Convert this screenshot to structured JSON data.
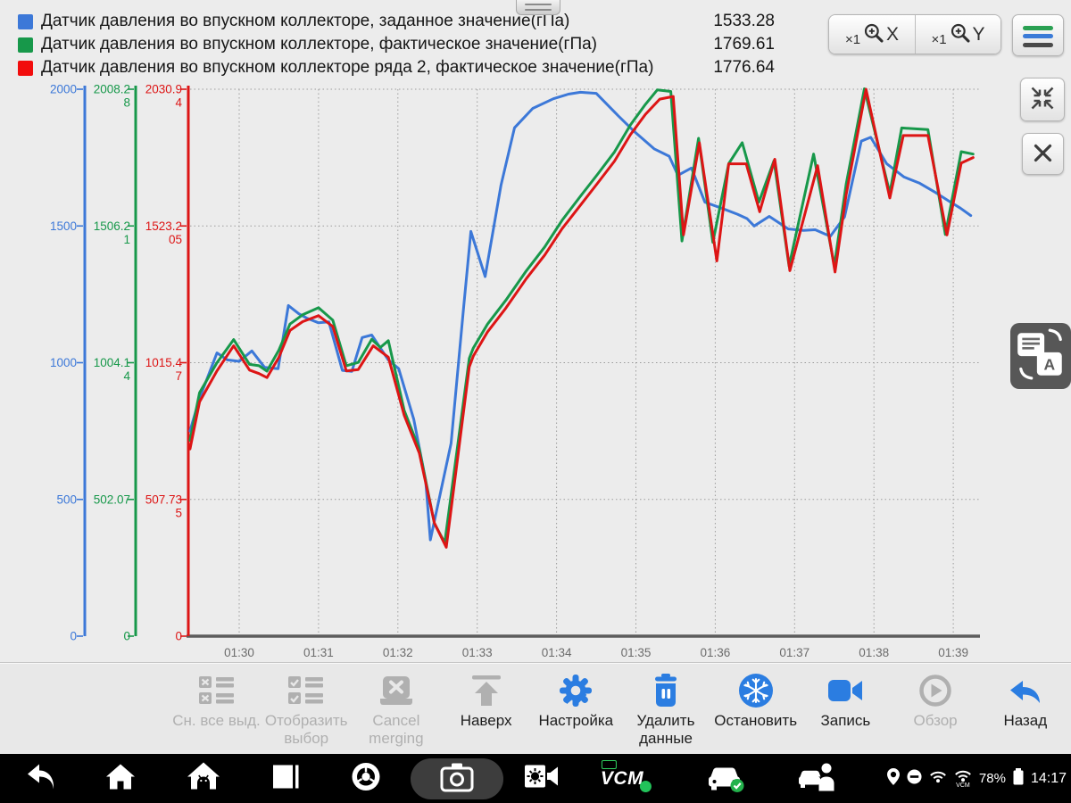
{
  "legend": {
    "rows": [
      {
        "label": "Датчик давления во впускном коллекторе, заданное значение(гПа)",
        "value": "1533.28",
        "color": "#3c78d8"
      },
      {
        "label": "Датчик давления во впускном коллекторе, фактическое значение(гПа)",
        "value": "1769.61",
        "color": "#17984a"
      },
      {
        "label": "Датчик давления во впускном коллекторе ряда 2, фактическое значение(гПа)",
        "value": "1776.64",
        "color": "#f20d0d"
      }
    ]
  },
  "controls": {
    "zoom_x": {
      "multiplier": "×1",
      "axis": "X"
    },
    "zoom_y": {
      "multiplier": "×1",
      "axis": "Y"
    }
  },
  "chart_data": {
    "type": "line",
    "x_ticks": [
      "01:30",
      "01:31",
      "01:32",
      "01:33",
      "01:34",
      "01:35",
      "01:36",
      "01:37",
      "01:38",
      "01:39"
    ],
    "grid": true,
    "y_axes": [
      {
        "name": "setpoint",
        "color": "#3c78d8",
        "max": 2000,
        "tick_labels": [
          [
            "2000"
          ],
          [
            "1500"
          ],
          [
            "1000"
          ],
          [
            "500"
          ],
          [
            "0"
          ]
        ]
      },
      {
        "name": "actual",
        "color": "#17984a",
        "max": 2008.28,
        "tick_labels": [
          [
            "2008.2",
            "8"
          ],
          [
            "1506.2",
            "1"
          ],
          [
            "1004.1",
            "4"
          ],
          [
            "502.07"
          ],
          [
            "0"
          ]
        ]
      },
      {
        "name": "actual_bank2",
        "color": "#dd1515",
        "max": 2030.94,
        "tick_labels": [
          [
            "2030.9",
            "4"
          ],
          [
            "1523.2",
            "05"
          ],
          [
            "1015.4",
            "7"
          ],
          [
            "507.73",
            "5"
          ],
          [
            "0"
          ]
        ]
      }
    ],
    "series": [
      {
        "name": "Датчик давления во впускном коллекторе, заданное значение(гПа)",
        "color": "#3c78d8",
        "axis_max": 2000,
        "points": [
          [
            0.38,
            750
          ],
          [
            0.5,
            870
          ],
          [
            0.62,
            960
          ],
          [
            0.72,
            1036
          ],
          [
            0.85,
            1010
          ],
          [
            1.0,
            1005
          ],
          [
            1.16,
            1043
          ],
          [
            1.32,
            983
          ],
          [
            1.49,
            978
          ],
          [
            1.62,
            1209
          ],
          [
            1.75,
            1179
          ],
          [
            1.85,
            1163
          ],
          [
            2.0,
            1146
          ],
          [
            2.13,
            1149
          ],
          [
            2.3,
            972
          ],
          [
            2.42,
            968
          ],
          [
            2.55,
            1092
          ],
          [
            2.67,
            1101
          ],
          [
            2.88,
            1010
          ],
          [
            3.01,
            978
          ],
          [
            3.2,
            793
          ],
          [
            3.35,
            570
          ],
          [
            3.41,
            352
          ],
          [
            3.67,
            705
          ],
          [
            3.83,
            1207
          ],
          [
            3.92,
            1480
          ],
          [
            4.1,
            1315
          ],
          [
            4.3,
            1650
          ],
          [
            4.47,
            1859
          ],
          [
            4.7,
            1930
          ],
          [
            4.96,
            1965
          ],
          [
            5.15,
            1982
          ],
          [
            5.3,
            1989
          ],
          [
            5.5,
            1985
          ],
          [
            5.78,
            1902
          ],
          [
            5.97,
            1848
          ],
          [
            6.23,
            1782
          ],
          [
            6.42,
            1755
          ],
          [
            6.53,
            1685
          ],
          [
            6.7,
            1712
          ],
          [
            6.87,
            1587
          ],
          [
            7.08,
            1565
          ],
          [
            7.28,
            1543
          ],
          [
            7.4,
            1527
          ],
          [
            7.49,
            1500
          ],
          [
            7.68,
            1535
          ],
          [
            7.92,
            1489
          ],
          [
            8.11,
            1484
          ],
          [
            8.26,
            1486
          ],
          [
            8.45,
            1462
          ],
          [
            8.63,
            1533
          ],
          [
            8.84,
            1810
          ],
          [
            8.96,
            1824
          ],
          [
            9.16,
            1728
          ],
          [
            9.38,
            1679
          ],
          [
            9.57,
            1657
          ],
          [
            9.76,
            1625
          ],
          [
            9.94,
            1592
          ],
          [
            10.09,
            1565
          ],
          [
            10.22,
            1538
          ]
        ]
      },
      {
        "name": "Датчик давления во впускном коллекторе, фактическое значение(гПа)",
        "color": "#17984a",
        "axis_max": 2008.28,
        "points": [
          [
            0.38,
            719
          ],
          [
            0.5,
            894
          ],
          [
            0.72,
            1004
          ],
          [
            0.93,
            1089
          ],
          [
            1.13,
            998
          ],
          [
            1.25,
            993
          ],
          [
            1.35,
            973
          ],
          [
            1.5,
            1050
          ],
          [
            1.64,
            1146
          ],
          [
            1.8,
            1180
          ],
          [
            2.0,
            1206
          ],
          [
            2.18,
            1160
          ],
          [
            2.35,
            993
          ],
          [
            2.5,
            1005
          ],
          [
            2.67,
            1090
          ],
          [
            2.78,
            1060
          ],
          [
            2.88,
            1085
          ],
          [
            3.08,
            829
          ],
          [
            3.27,
            687
          ],
          [
            3.46,
            414
          ],
          [
            3.59,
            343
          ],
          [
            3.9,
            1020
          ],
          [
            3.95,
            1058
          ],
          [
            4.13,
            1146
          ],
          [
            4.36,
            1233
          ],
          [
            4.62,
            1342
          ],
          [
            4.85,
            1429
          ],
          [
            5.07,
            1527
          ],
          [
            5.3,
            1615
          ],
          [
            5.52,
            1697
          ],
          [
            5.73,
            1778
          ],
          [
            5.93,
            1877
          ],
          [
            6.12,
            1953
          ],
          [
            6.27,
            2006
          ],
          [
            6.44,
            2000
          ],
          [
            6.58,
            1451
          ],
          [
            6.79,
            1828
          ],
          [
            6.97,
            1446
          ],
          [
            7.17,
            1735
          ],
          [
            7.34,
            1812
          ],
          [
            7.55,
            1594
          ],
          [
            7.74,
            1746
          ],
          [
            7.93,
            1359
          ],
          [
            8.24,
            1770
          ],
          [
            8.5,
            1360
          ],
          [
            8.65,
            1660
          ],
          [
            8.88,
            2010
          ],
          [
            9.2,
            1627
          ],
          [
            9.35,
            1866
          ],
          [
            9.68,
            1860
          ],
          [
            9.9,
            1475
          ],
          [
            10.1,
            1779
          ],
          [
            10.25,
            1770
          ]
        ]
      },
      {
        "name": "Датчик давления во впускном коллекторе ряда 2, фактическое значение(гПа)",
        "color": "#dd1515",
        "axis_max": 2030.94,
        "points": [
          [
            0.38,
            695
          ],
          [
            0.5,
            870
          ],
          [
            0.72,
            985
          ],
          [
            0.93,
            1078
          ],
          [
            1.13,
            988
          ],
          [
            1.25,
            975
          ],
          [
            1.35,
            960
          ],
          [
            1.5,
            1035
          ],
          [
            1.64,
            1135
          ],
          [
            1.8,
            1168
          ],
          [
            2.0,
            1190
          ],
          [
            2.18,
            1150
          ],
          [
            2.35,
            985
          ],
          [
            2.5,
            990
          ],
          [
            2.69,
            1078
          ],
          [
            2.88,
            1036
          ],
          [
            3.08,
            820
          ],
          [
            3.27,
            680
          ],
          [
            3.46,
            420
          ],
          [
            3.61,
            330
          ],
          [
            3.9,
            1000
          ],
          [
            3.95,
            1040
          ],
          [
            4.13,
            1130
          ],
          [
            4.36,
            1218
          ],
          [
            4.62,
            1328
          ],
          [
            4.85,
            1415
          ],
          [
            5.07,
            1513
          ],
          [
            5.3,
            1600
          ],
          [
            5.52,
            1683
          ],
          [
            5.73,
            1764
          ],
          [
            5.93,
            1862
          ],
          [
            6.12,
            1938
          ],
          [
            6.3,
            1994
          ],
          [
            6.47,
            2004
          ],
          [
            6.6,
            1490
          ],
          [
            6.8,
            1832
          ],
          [
            7.02,
            1393
          ],
          [
            7.17,
            1754
          ],
          [
            7.39,
            1754
          ],
          [
            7.56,
            1576
          ],
          [
            7.75,
            1771
          ],
          [
            7.94,
            1357
          ],
          [
            8.29,
            1747
          ],
          [
            8.51,
            1352
          ],
          [
            8.65,
            1640
          ],
          [
            8.9,
            2031
          ],
          [
            9.2,
            1627
          ],
          [
            9.37,
            1859
          ],
          [
            9.68,
            1859
          ],
          [
            9.92,
            1490
          ],
          [
            10.1,
            1757
          ],
          [
            10.25,
            1777
          ]
        ]
      }
    ]
  },
  "toolbar": {
    "items": [
      {
        "name": "deselect-all",
        "icon": "list-x",
        "label": "Сн. все выд.",
        "icon_color": "gray",
        "label_color": "light"
      },
      {
        "name": "show-selection",
        "icon": "list-check",
        "label": "Отобразить выбор",
        "icon_color": "gray",
        "label_color": "light"
      },
      {
        "name": "cancel-merging",
        "icon": "cancel-merge",
        "label": "Cancel merging",
        "icon_color": "gray",
        "label_color": "light"
      },
      {
        "name": "to-top",
        "icon": "arrow-up-bar",
        "label": "Наверх",
        "icon_color": "gray",
        "label_color": "dark"
      },
      {
        "name": "settings",
        "icon": "gear",
        "label": "Настройка",
        "icon_color": "blue",
        "label_color": "dark"
      },
      {
        "name": "clear-data",
        "icon": "trash-pause",
        "label": "Удалить данные",
        "icon_color": "blue",
        "label_color": "dark"
      },
      {
        "name": "freeze",
        "icon": "snowflake-circle",
        "label": "Остановить",
        "icon_color": "blue",
        "label_color": "dark"
      },
      {
        "name": "record",
        "icon": "video-cam",
        "label": "Запись",
        "icon_color": "blue",
        "label_color": "dark"
      },
      {
        "name": "review",
        "icon": "play-circle",
        "label": "Обзор",
        "icon_color": "gray",
        "label_color": "light"
      },
      {
        "name": "back",
        "icon": "back-swoosh",
        "label": "Назад",
        "icon_color": "blue",
        "label_color": "dark"
      }
    ]
  },
  "navbar": {
    "items": [
      {
        "name": "nav-back-button",
        "icon": "nav-back"
      },
      {
        "name": "nav-home-button",
        "icon": "nav-home"
      },
      {
        "name": "nav-app-home-button",
        "icon": "nav-apphome"
      },
      {
        "name": "nav-recents-button",
        "icon": "nav-recent"
      },
      {
        "name": "nav-chrome-button",
        "icon": "nav-chrome"
      },
      {
        "name": "nav-camera-button",
        "icon": "nav-camera"
      },
      {
        "name": "nav-display-sound-button",
        "icon": "nav-brightness"
      },
      {
        "name": "nav-vcm-status",
        "icon": "nav-vcm"
      },
      {
        "name": "nav-vehicle-status",
        "icon": "nav-car-check"
      },
      {
        "name": "nav-driving-mode",
        "icon": "nav-car-person"
      }
    ],
    "vcm_text": "VCM",
    "status": {
      "battery_percent": "78%",
      "time": "14:17",
      "wifi_tag": "VCM"
    }
  }
}
